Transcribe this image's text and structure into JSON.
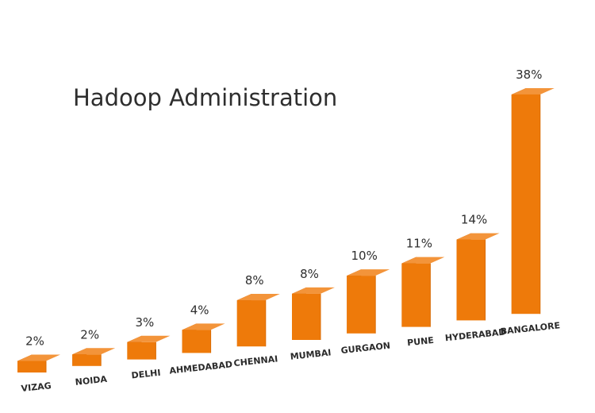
{
  "chart_data": {
    "type": "bar",
    "title": "Hadoop Administration",
    "categories": [
      "VIZAG",
      "NOIDA",
      "DELHI",
      "AHMEDABAD",
      "CHENNAI",
      "MUMBAI",
      "GURGAON",
      "PUNE",
      "HYDERABAD",
      "BANGALORE"
    ],
    "values": [
      2,
      2,
      3,
      4,
      8,
      8,
      10,
      11,
      14,
      38
    ],
    "value_labels": [
      "2%",
      "2%",
      "3%",
      "4%",
      "8%",
      "8%",
      "10%",
      "11%",
      "14%",
      "38%"
    ],
    "unit": "%",
    "xlabel": "",
    "ylabel": "",
    "grid": false,
    "legend": "none",
    "style": "3d-perspective-bars"
  },
  "colors": {
    "bar_front": "#ee7a0a",
    "bar_side": "#c65f02",
    "bar_top": "#f3943a",
    "text": "#2e2e2e"
  }
}
